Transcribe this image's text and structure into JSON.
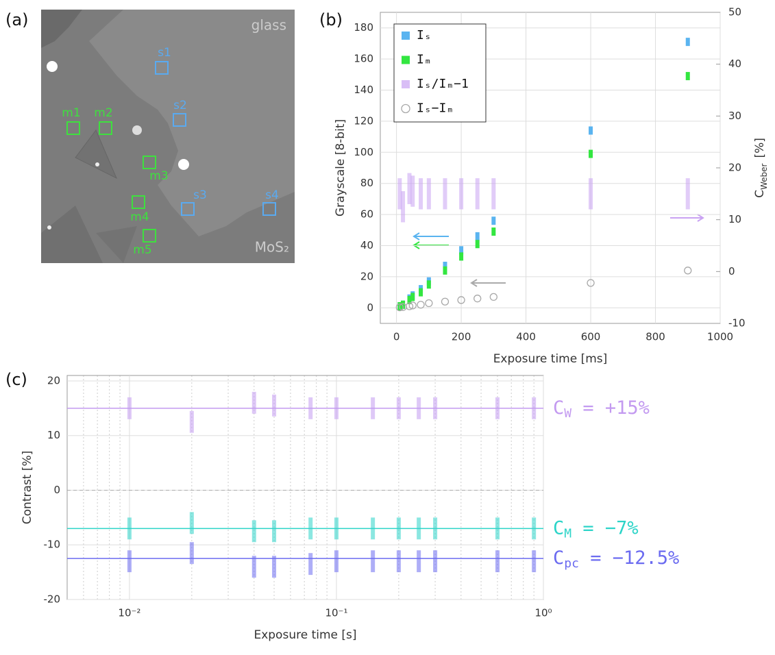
{
  "image_panel": {
    "panel": "(a)",
    "top_label": "glass",
    "bottom_label": "MoS₂",
    "regions": [
      {
        "label": "s1",
        "group": "signal"
      },
      {
        "label": "s2",
        "group": "signal"
      },
      {
        "label": "s3",
        "group": "signal"
      },
      {
        "label": "s4",
        "group": "signal"
      },
      {
        "label": "m1",
        "group": "matrix"
      },
      {
        "label": "m2",
        "group": "matrix"
      },
      {
        "label": "m3",
        "group": "matrix"
      },
      {
        "label": "m4",
        "group": "matrix"
      },
      {
        "label": "m5",
        "group": "matrix"
      }
    ]
  },
  "chart_data": [
    {
      "type": "scatter",
      "panel": "(b)",
      "xlabel": "Exposure time  [ms]",
      "ylabel": "Grayscale  [8-bit]",
      "y2label": {
        "symbol": "C",
        "subscript": "Weber",
        "unit": "[%]"
      },
      "x": [
        10,
        20,
        40,
        50,
        75,
        100,
        150,
        200,
        250,
        300,
        600,
        900
      ],
      "xlim": [
        -50,
        1000
      ],
      "xticks": [
        0,
        200,
        400,
        600,
        800,
        1000
      ],
      "ylim": [
        -10,
        190
      ],
      "yticks": [
        0,
        20,
        40,
        60,
        80,
        100,
        120,
        140,
        160,
        180
      ],
      "y2lim": [
        -10,
        50
      ],
      "y2ticks": [
        -10,
        0,
        10,
        20,
        30,
        40,
        50
      ],
      "grid": true,
      "legend": "upper left",
      "series": [
        {
          "name": "Iₛ",
          "color": "#5ab4f0",
          "marker": "bar",
          "values": [
            1,
            2,
            6,
            8,
            12,
            17,
            27,
            37,
            46,
            56,
            114,
            171
          ]
        },
        {
          "name": "Iₘ",
          "color": "#33e640",
          "marker": "bar",
          "values": [
            1,
            2,
            5,
            7,
            10,
            15,
            24,
            33,
            41,
            49,
            99,
            149
          ]
        },
        {
          "name": "Iₛ/Iₘ−1",
          "color": "#c9a2f2",
          "marker": "streak",
          "axis": "y2",
          "values": [
            15,
            12.5,
            16,
            15.5,
            15,
            15,
            15,
            15,
            15,
            15,
            15,
            15
          ]
        },
        {
          "name": "Iₛ−Iₘ",
          "color": "#a8a8a8",
          "marker": "circle",
          "values": [
            0.3,
            0.5,
            1,
            1.5,
            2,
            3,
            4,
            5,
            6,
            7,
            16,
            24
          ]
        }
      ]
    },
    {
      "type": "scatter",
      "panel": "(c)",
      "xlabel": "Exposure time  [s]",
      "ylabel": "Contrast  [%]",
      "log_x": true,
      "x": [
        0.01,
        0.02,
        0.04,
        0.05,
        0.075,
        0.1,
        0.15,
        0.2,
        0.25,
        0.3,
        0.6,
        0.9
      ],
      "xlim": [
        0.005,
        1
      ],
      "xticks": [
        {
          "value": 0.01,
          "label": "10⁻²"
        },
        {
          "value": 0.1,
          "label": "10⁻¹"
        },
        {
          "value": 1,
          "label": "10⁰"
        }
      ],
      "ylim": [
        -20,
        21
      ],
      "yticks": [
        -20,
        -10,
        0,
        10,
        20
      ],
      "grid": true,
      "series": [
        {
          "name": "C_W",
          "color": "#c39af0",
          "values": [
            15,
            12.5,
            16,
            15.5,
            15,
            15,
            15,
            15,
            15,
            15,
            15,
            15
          ]
        },
        {
          "name": "C_M",
          "color": "#2cd4c8",
          "values": [
            -7,
            -6,
            -7.5,
            -7.5,
            -7,
            -7,
            -7,
            -7,
            -7,
            -7,
            -7,
            -7
          ]
        },
        {
          "name": "C_pc",
          "color": "#6b6bf0",
          "values": [
            -13,
            -11.5,
            -14,
            -14,
            -13.5,
            -13,
            -13,
            -13,
            -13,
            -13,
            -13,
            -13
          ]
        }
      ],
      "reference_lines": [
        {
          "symbol": "C",
          "subscript": "W",
          "label": " = +15%",
          "value": 15,
          "color": "#c39af0"
        },
        {
          "symbol": "C",
          "subscript": "M",
          "label": " = −7%",
          "value": -7,
          "color": "#2cd4c8"
        },
        {
          "symbol": "C",
          "subscript": "pc",
          "label": " = −12.5%",
          "value": -12.5,
          "color": "#6b6bf0"
        }
      ]
    }
  ]
}
